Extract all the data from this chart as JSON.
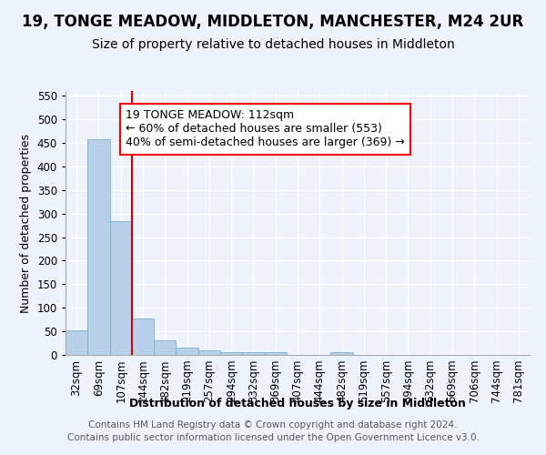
{
  "title": "19, TONGE MEADOW, MIDDLETON, MANCHESTER, M24 2UR",
  "subtitle": "Size of property relative to detached houses in Middleton",
  "xlabel": "Distribution of detached houses by size in Middleton",
  "ylabel": "Number of detached properties",
  "bar_color": "#b8d0ea",
  "bar_edge_color": "#7aafd4",
  "vline_color": "#cc0000",
  "vline_x_index": 2,
  "categories": [
    "32sqm",
    "69sqm",
    "107sqm",
    "144sqm",
    "182sqm",
    "219sqm",
    "257sqm",
    "294sqm",
    "332sqm",
    "369sqm",
    "407sqm",
    "444sqm",
    "482sqm",
    "519sqm",
    "557sqm",
    "594sqm",
    "632sqm",
    "669sqm",
    "706sqm",
    "744sqm",
    "781sqm"
  ],
  "values": [
    53,
    458,
    283,
    78,
    30,
    16,
    10,
    6,
    5,
    6,
    0,
    0,
    5,
    0,
    0,
    0,
    0,
    0,
    0,
    0,
    0
  ],
  "ylim": [
    0,
    560
  ],
  "yticks": [
    0,
    50,
    100,
    150,
    200,
    250,
    300,
    350,
    400,
    450,
    500,
    550
  ],
  "annotation_line1": "19 TONGE MEADOW: 112sqm",
  "annotation_line2": "← 60% of detached houses are smaller (553)",
  "annotation_line3": "40% of semi-detached houses are larger (369) →",
  "footer_line1": "Contains HM Land Registry data © Crown copyright and database right 2024.",
  "footer_line2": "Contains public sector information licensed under the Open Government Licence v3.0.",
  "bg_color": "#eef3fb",
  "grid_color": "#ffffff",
  "tick_fontsize": 8.5,
  "title_fontsize": 12,
  "subtitle_fontsize": 10,
  "ylabel_fontsize": 9,
  "xlabel_fontsize": 9,
  "annotation_fontsize": 9,
  "footer_fontsize": 7.5
}
